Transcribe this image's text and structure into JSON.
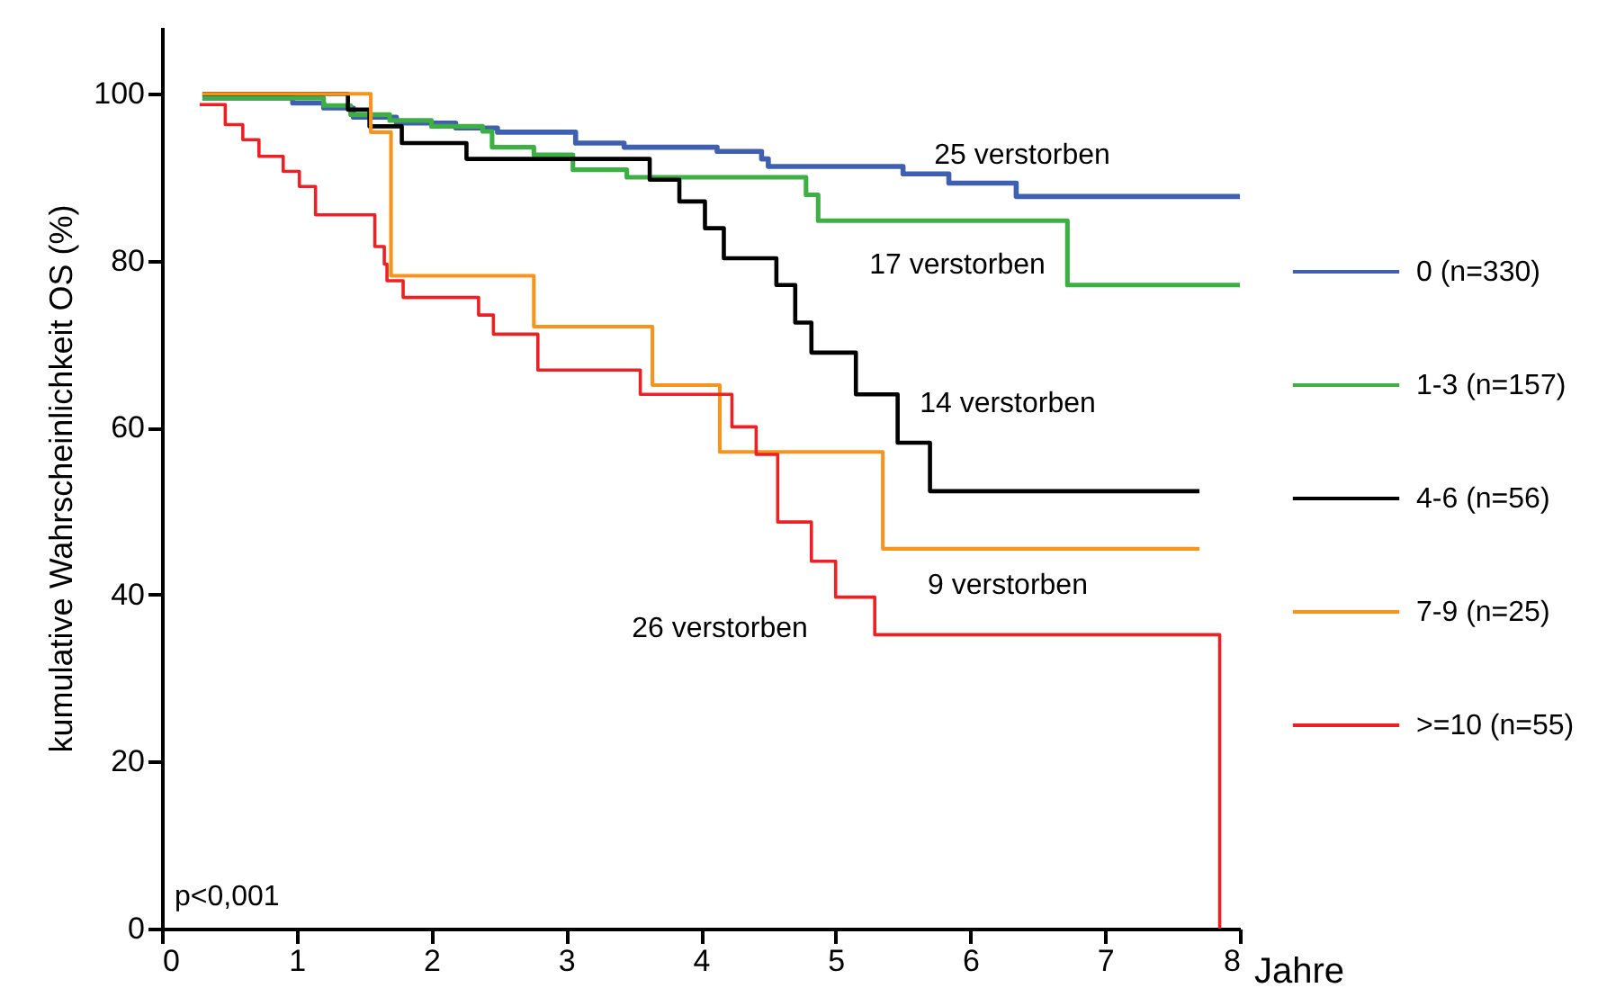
{
  "chart_data": {
    "type": "step",
    "xlabel": "Jahre",
    "ylabel": "kumulative Wahrscheinlichkeit OS (%)",
    "xlim": [
      0,
      8
    ],
    "xticks": [
      0,
      1,
      2,
      3,
      4,
      5,
      6,
      7,
      8
    ],
    "ylim": [
      0,
      108
    ],
    "yticks": [
      0,
      20,
      40,
      60,
      80,
      100
    ],
    "grid": false,
    "legend": "right",
    "line_style": "solid",
    "series": [
      {
        "name": "0 (n=330)",
        "color": "#3f5fb0",
        "x": [
          0.3,
          0.97,
          1.2,
          1.42,
          1.74,
          2.18,
          2.49,
          3.07,
          3.43,
          4.12,
          4.45,
          4.5,
          5.5,
          5.84,
          6.34,
          8.0
        ],
        "values": [
          99.5,
          98.9,
          98.3,
          97.2,
          96.5,
          95.9,
          95.4,
          94.1,
          93.6,
          93.1,
          92.2,
          91.3,
          90.4,
          89.3,
          87.7,
          87.7
        ]
      },
      {
        "name": "1-3 (n=157)",
        "color": "#3cb043",
        "x": [
          0.3,
          1.2,
          1.4,
          1.69,
          2.0,
          2.38,
          2.45,
          2.76,
          3.05,
          3.45,
          4.78,
          4.87,
          6.72,
          8.0
        ],
        "values": [
          99.5,
          98.6,
          97.5,
          96.8,
          96.1,
          95.5,
          93.6,
          92.7,
          90.9,
          90.0,
          87.9,
          84.8,
          77.1,
          77.1
        ]
      },
      {
        "name": "4-6 (n=56)",
        "color": "#000000",
        "x": [
          0.3,
          1.38,
          1.54,
          1.78,
          2.26,
          3.62,
          3.84,
          4.03,
          4.17,
          4.56,
          4.7,
          4.82,
          5.15,
          5.46,
          5.7,
          7.7
        ],
        "values": [
          100,
          98.1,
          96.1,
          94.1,
          92.2,
          89.7,
          87.1,
          83.9,
          80.3,
          77.1,
          72.6,
          69.0,
          64.0,
          58.2,
          52.4,
          52.4
        ]
      },
      {
        "name": "7-9 (n=25)",
        "color": "#f7941d",
        "x": [
          0.3,
          1.55,
          1.7,
          2.76,
          3.64,
          4.14,
          5.35,
          7.7
        ],
        "values": [
          100,
          95.4,
          78.2,
          72.1,
          65.1,
          57.1,
          45.5,
          45.5
        ]
      },
      {
        "name": ">=10 (n=55)",
        "color": "#ed2024",
        "x": [
          0.28,
          0.47,
          0.6,
          0.72,
          0.9,
          1.02,
          1.14,
          1.58,
          1.65,
          1.67,
          1.79,
          2.35,
          2.46,
          2.79,
          3.55,
          4.23,
          4.41,
          4.57,
          4.82,
          5.0,
          5.29,
          7.85,
          7.85
        ],
        "values": [
          98.7,
          96.3,
          94.5,
          92.5,
          90.7,
          88.9,
          85.5,
          81.7,
          79.6,
          77.6,
          75.6,
          73.5,
          71.2,
          66.9,
          64.0,
          60.1,
          56.8,
          48.7,
          44.0,
          39.7,
          35.2,
          35.2,
          0
        ]
      }
    ],
    "annotations": [
      "25 verstorben",
      "17 verstorben",
      "14 verstorben",
      "9 verstorben",
      "26 verstorben",
      "p<0,001"
    ]
  }
}
